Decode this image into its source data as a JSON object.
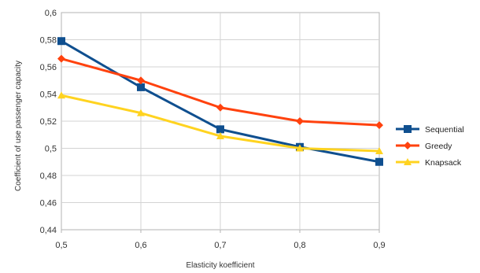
{
  "chart_data": {
    "type": "line",
    "title": "",
    "xlabel": "Elasticity koefficient",
    "ylabel": "Coefficient of use passenger capacity",
    "x": [
      "0,5",
      "0,6",
      "0,7",
      "0,8",
      "0,9"
    ],
    "ylim": [
      0.44,
      0.6
    ],
    "yticks": [
      0.44,
      0.46,
      0.48,
      0.5,
      0.52,
      0.54,
      0.56,
      0.58,
      0.6
    ],
    "ytick_labels": [
      "0,44",
      "0,46",
      "0,48",
      "0,5",
      "0,52",
      "0,54",
      "0,56",
      "0,58",
      "0,6"
    ],
    "grid": true,
    "legend_position": "right",
    "series": [
      {
        "name": "Sequential",
        "color": "#0f4f8f",
        "marker": "square",
        "values": [
          0.579,
          0.545,
          0.514,
          0.501,
          0.49
        ]
      },
      {
        "name": "Greedy",
        "color": "#ff420e",
        "marker": "diamond",
        "values": [
          0.566,
          0.55,
          0.53,
          0.52,
          0.517
        ]
      },
      {
        "name": "Knapsack",
        "color": "#ffd320",
        "marker": "triangle",
        "values": [
          0.539,
          0.526,
          0.509,
          0.5,
          0.498
        ]
      }
    ]
  }
}
